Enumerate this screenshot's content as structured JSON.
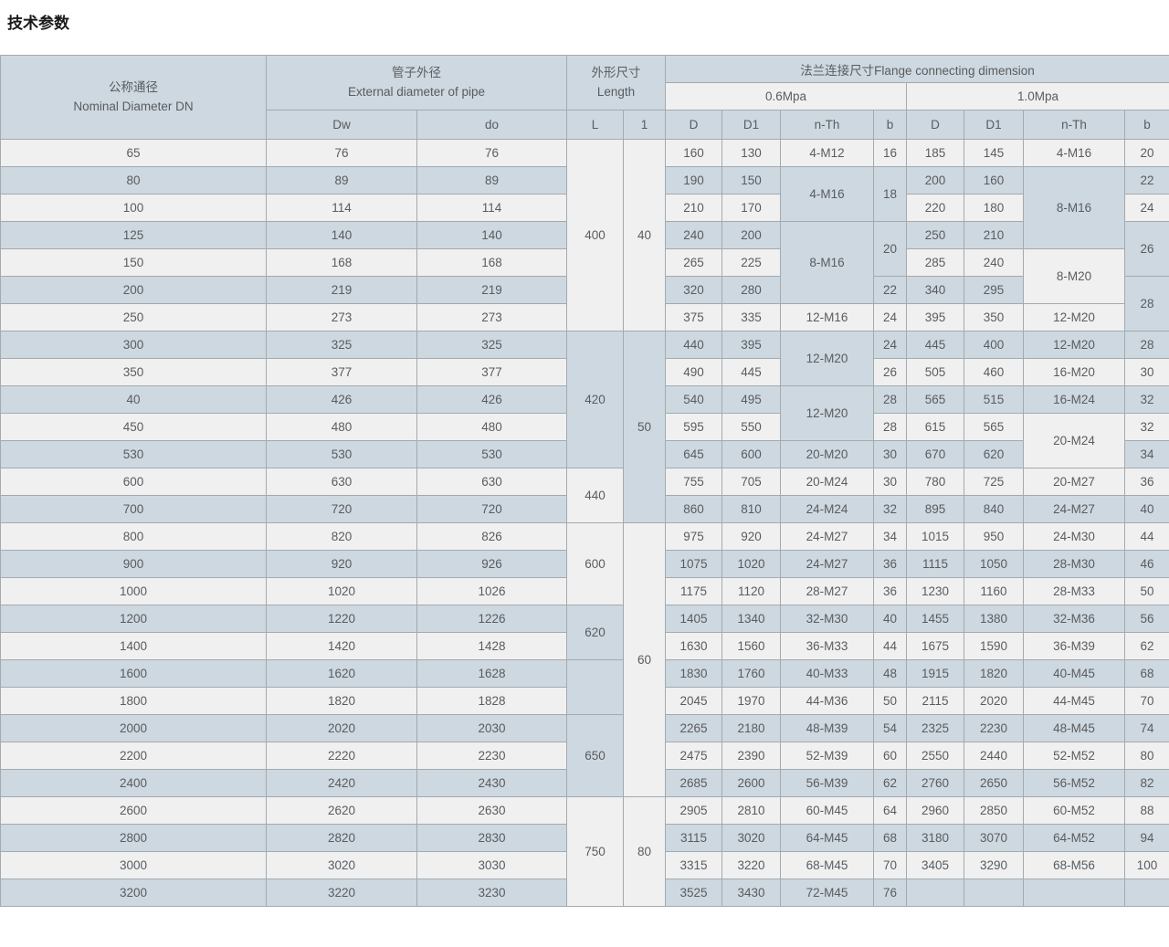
{
  "title": "技术参数",
  "colors": {
    "row_blue": "#cdd8e0",
    "row_light": "#f0f0f1",
    "border": "#a4aaae",
    "text": "#5a5c5f"
  },
  "table": {
    "header": {
      "dn_zh": "公称通径",
      "dn_en": "Nominal Diameter DN",
      "pipe_zh": "管子外径",
      "pipe_en": "External diameter of pipe",
      "length_zh": "外形尺寸",
      "length_en": "Length",
      "flange": "法兰连接尺寸Flange connecting dimension",
      "pressure_06": "0.6Mpa",
      "pressure_10": "1.0Mpa",
      "sub": [
        "Dw",
        "do",
        "L",
        "1",
        "D",
        "D1",
        "n-Th",
        "b",
        "D",
        "D1",
        "n-Th",
        "b"
      ]
    },
    "columns": [
      {
        "key": "dn",
        "cells": [
          "65",
          "80",
          "100",
          "125",
          "150",
          "200",
          "250",
          "300",
          "350",
          "40",
          "450",
          "530",
          "600",
          "700",
          "800",
          "900",
          "1000",
          "1200",
          "1400",
          "1600",
          "1800",
          "2000",
          "2200",
          "2400",
          "2600",
          "2800",
          "3000",
          "3200"
        ]
      },
      {
        "key": "dw",
        "cells": [
          "76",
          "89",
          "114",
          "140",
          "168",
          "219",
          "273",
          "325",
          "377",
          "426",
          "480",
          "530",
          "630",
          "720",
          "820",
          "920",
          "1020",
          "1220",
          "1420",
          "1620",
          "1820",
          "2020",
          "2220",
          "2420",
          "2620",
          "2820",
          "3020",
          "3220"
        ]
      },
      {
        "key": "do",
        "cells": [
          "76",
          "89",
          "114",
          "140",
          "168",
          "219",
          "273",
          "325",
          "377",
          "426",
          "480",
          "530",
          "630",
          "720",
          "826",
          "926",
          "1026",
          "1226",
          "1428",
          "1628",
          "1828",
          "2030",
          "2230",
          "2430",
          "2630",
          "2830",
          "3030",
          "3230"
        ]
      },
      {
        "key": "L",
        "cells": [
          [
            "400",
            7
          ],
          [
            "420",
            5
          ],
          [
            "440",
            2
          ],
          [
            "600",
            3
          ],
          [
            "620",
            2
          ],
          [
            "",
            2
          ],
          [
            "650",
            3
          ],
          [
            "750",
            4
          ]
        ]
      },
      {
        "key": "l",
        "cells": [
          [
            "40",
            7
          ],
          [
            "50",
            7
          ],
          [
            "60",
            10
          ],
          [
            "80",
            4
          ]
        ]
      },
      {
        "key": "d_06",
        "cells": [
          "160",
          "190",
          "210",
          "240",
          "265",
          "320",
          "375",
          "440",
          "490",
          "540",
          "595",
          "645",
          "755",
          "860",
          "975",
          "1075",
          "1175",
          "1405",
          "1630",
          "1830",
          "2045",
          "2265",
          "2475",
          "2685",
          "2905",
          "3115",
          "3315",
          "3525"
        ]
      },
      {
        "key": "d1_06",
        "cells": [
          "130",
          "150",
          "170",
          "200",
          "225",
          "280",
          "335",
          "395",
          "445",
          "495",
          "550",
          "600",
          "705",
          "810",
          "920",
          "1020",
          "1120",
          "1340",
          "1560",
          "1760",
          "1970",
          "2180",
          "2390",
          "2600",
          "2810",
          "3020",
          "3220",
          "3430"
        ]
      },
      {
        "key": "nth_06",
        "cells": [
          "4-M12",
          [
            "4-M16",
            2
          ],
          [
            "8-M16",
            3
          ],
          "12-M16",
          [
            "12-M20",
            2
          ],
          [
            "12-M20",
            2
          ],
          "20-M20",
          "20-M24",
          "24-M24",
          "24-M27",
          "24-M27",
          "28-M27",
          "32-M30",
          "36-M33",
          "40-M33",
          "44-M36",
          "48-M39",
          "52-M39",
          "56-M39",
          "60-M45",
          "64-M45",
          "68-M45",
          "72-M45"
        ]
      },
      {
        "key": "b_06",
        "cells": [
          "16",
          [
            "18",
            2
          ],
          [
            "20",
            2
          ],
          "22",
          "24",
          "24",
          "26",
          "28",
          "28",
          "30",
          "30",
          "32",
          "34",
          "36",
          "36",
          "40",
          "44",
          "48",
          "50",
          "54",
          "60",
          "62",
          "64",
          "68",
          "70",
          "76"
        ]
      },
      {
        "key": "d_10",
        "cells": [
          "185",
          "200",
          "220",
          "250",
          "285",
          "340",
          "395",
          "445",
          "505",
          "565",
          "615",
          "670",
          "780",
          "895",
          "1015",
          "1115",
          "1230",
          "1455",
          "1675",
          "1915",
          "2115",
          "2325",
          "2550",
          "2760",
          "2960",
          "3180",
          "3405",
          ""
        ]
      },
      {
        "key": "d1_10",
        "cells": [
          "145",
          "160",
          "180",
          "210",
          "240",
          "295",
          "350",
          "400",
          "460",
          "515",
          "565",
          "620",
          "725",
          "840",
          "950",
          "1050",
          "1160",
          "1380",
          "1590",
          "1820",
          "2020",
          "2230",
          "2440",
          "2650",
          "2850",
          "3070",
          "3290",
          ""
        ]
      },
      {
        "key": "nth_10",
        "cells": [
          "4-M16",
          [
            "8-M16",
            3
          ],
          [
            "8-M20",
            2
          ],
          "12-M20",
          "12-M20",
          "16-M20",
          "16-M24",
          [
            "20-M24",
            2
          ],
          "20-M27",
          "24-M27",
          "24-M30",
          "28-M30",
          "28-M33",
          "32-M36",
          "36-M39",
          "40-M45",
          "44-M45",
          "48-M45",
          "52-M52",
          "56-M52",
          "60-M52",
          "64-M52",
          "68-M56",
          ""
        ]
      },
      {
        "key": "b_10",
        "cells": [
          "20",
          "22",
          "24",
          [
            "26",
            2
          ],
          [
            "28",
            2
          ],
          "28",
          "30",
          "32",
          "32",
          "34",
          "36",
          "40",
          "44",
          "46",
          "50",
          "56",
          "62",
          "68",
          "70",
          "74",
          "80",
          "82",
          "88",
          "94",
          "100",
          ""
        ]
      }
    ]
  }
}
